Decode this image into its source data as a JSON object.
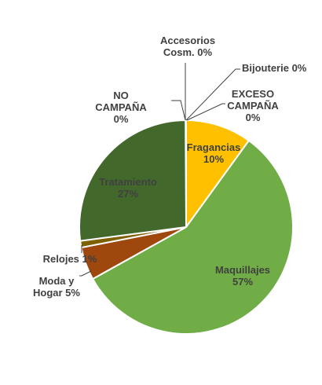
{
  "chart_data": {
    "type": "pie",
    "slices": [
      {
        "label": "Fragancias",
        "value": 10,
        "value_label": "10%",
        "color": "#FFC000",
        "label_color": "#404040"
      },
      {
        "label": "Maquillajes",
        "value": 57,
        "value_label": "57%",
        "color": "#70AD47",
        "label_color": "#404040"
      },
      {
        "label": "Moda y Hogar",
        "value": 5,
        "value_label": "5%",
        "color": "#9E480E",
        "label_color": "#404040"
      },
      {
        "label": "Relojes",
        "value": 1,
        "value_label": "1%",
        "color": "#7F6000",
        "label_color": "#404040"
      },
      {
        "label": "Tratamiento",
        "value": 27,
        "value_label": "27%",
        "color": "#43682B",
        "label_color": "#404040"
      },
      {
        "label": "NO CAMPAÑA",
        "value": 0,
        "value_label": "0%",
        "color": "#C9C9C9",
        "label_color": "#404040"
      },
      {
        "label": "Accesorios Cosm.",
        "value": 0,
        "value_label": "0%",
        "color": "#A5A5A5",
        "label_color": "#404040"
      },
      {
        "label": "Bijouterie",
        "value": 0,
        "value_label": "0%",
        "color": "#5B9BD5",
        "label_color": "#404040"
      },
      {
        "label": "EXCESO CAMPAÑA",
        "value": 0,
        "value_label": "0%",
        "color": "#264478",
        "label_color": "#404040"
      }
    ],
    "start_angle": "12 o'clock",
    "direction": "clockwise",
    "legend": "none",
    "data_labels": "category and percentage"
  }
}
